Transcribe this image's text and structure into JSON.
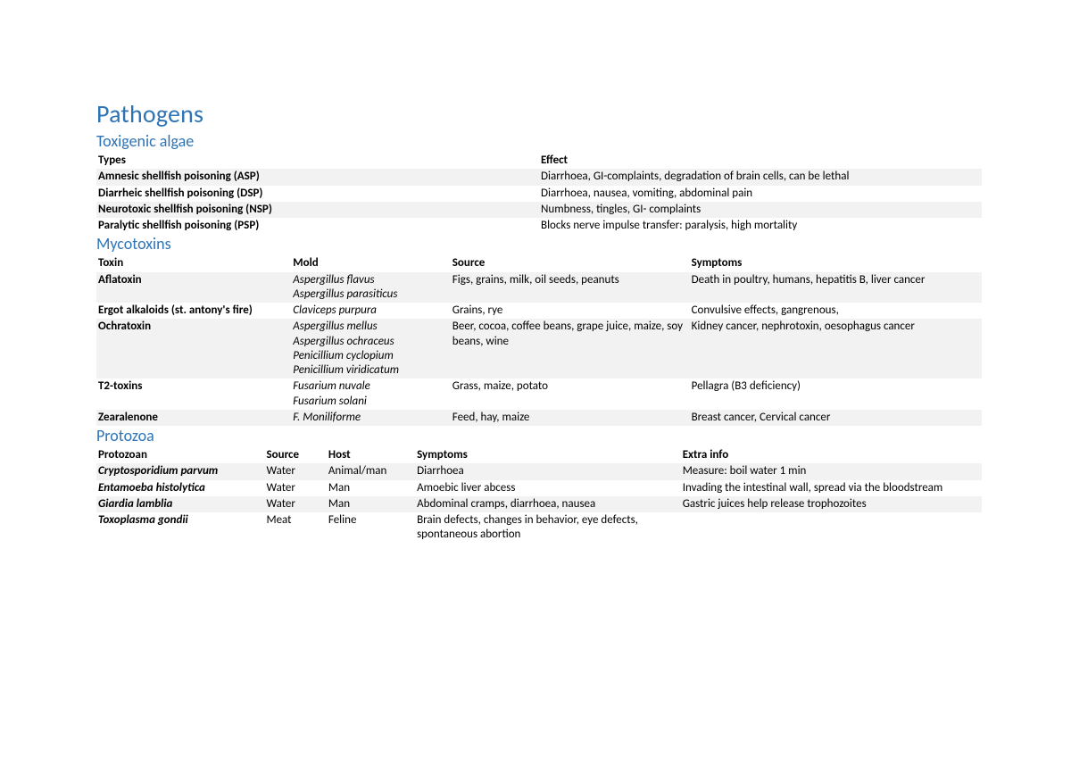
{
  "title": "Pathogens",
  "colors": {
    "heading": "#2e74b5",
    "text": "#000000",
    "row_shade": "#f2f2f2",
    "background": "#ffffff"
  },
  "typography": {
    "title_fontsize_pt": 21,
    "section_fontsize_pt": 14,
    "body_fontsize_pt": 10,
    "font_family": "Calibri"
  },
  "sections": {
    "algae": {
      "heading": "Toxigenic algae",
      "columns": [
        "Types",
        "Effect"
      ],
      "col_widths_pct": [
        50,
        50
      ],
      "rows": [
        {
          "type": "Amnesic shellfish poisoning (ASP)",
          "effect": "Diarrhoea, GI-complaints, degradation of brain cells, can be lethal"
        },
        {
          "type": "Diarrheic shellfish poisoning (DSP)",
          "effect": "Diarrhoea, nausea, vomiting, abdominal pain"
        },
        {
          "type": "Neurotoxic shellfish poisoning (NSP)",
          "effect": "Numbness, tingles, GI- complaints"
        },
        {
          "type": "Paralytic shellfish poisoning (PSP)",
          "effect": "Blocks nerve impulse transfer: paralysis, high mortality"
        }
      ]
    },
    "mycotoxins": {
      "heading": "Mycotoxins",
      "columns": [
        "Toxin",
        "Mold",
        "Source",
        "Symptoms"
      ],
      "col_widths_pct": [
        22,
        18,
        27,
        33
      ],
      "rows": [
        {
          "toxin": "Aflatoxin",
          "mold": "Aspergillus flavus\nAspergillus parasiticus",
          "source": "Figs, grains, milk, oil seeds, peanuts",
          "symptoms": "Death in poultry, humans, hepatitis B, liver cancer"
        },
        {
          "toxin": "Ergot alkaloids (st. antony's fire)",
          "mold": "Claviceps purpura",
          "source": "Grains, rye",
          "symptoms": "Convulsive effects, gangrenous,"
        },
        {
          "toxin": "Ochratoxin",
          "mold": "Aspergillus mellus\nAspergillus ochraceus\nPenicillium cyclopium\nPenicillium viridicatum",
          "source": "Beer, cocoa, coffee beans, grape juice, maize, soy beans, wine",
          "symptoms": "Kidney cancer, nephrotoxin, oesophagus cancer"
        },
        {
          "toxin": "T2-toxins",
          "mold": "Fusarium nuvale\nFusarium solani",
          "source": "Grass, maize, potato",
          "symptoms": "Pellagra (B3 deficiency)"
        },
        {
          "toxin": "Zearalenone",
          "mold": "F. Moniliforme",
          "source": "Feed, hay, maize",
          "symptoms": "Breast cancer, Cervical cancer"
        }
      ]
    },
    "protozoa": {
      "heading": "Protozoa",
      "columns": [
        "Protozoan",
        "Source",
        "Host",
        "Symptoms",
        "Extra info"
      ],
      "col_widths_pct": [
        19,
        7,
        10,
        30,
        34
      ],
      "rows": [
        {
          "protozoan": "Cryptosporidium parvum",
          "source": "Water",
          "host": "Animal/man",
          "symptoms": "Diarrhoea",
          "extra": "Measure: boil water 1 min"
        },
        {
          "protozoan": "Entamoeba histolytica",
          "source": "Water",
          "host": "Man",
          "symptoms": "Amoebic liver abcess",
          "extra": "Invading the intestinal wall, spread via the bloodstream"
        },
        {
          "protozoan": "Giardia lamblia",
          "source": "Water",
          "host": "Man",
          "symptoms": "Abdominal cramps, diarrhoea, nausea",
          "extra": "Gastric juices help release trophozoites"
        },
        {
          "protozoan": "Toxoplasma gondii",
          "source": "Meat",
          "host": "Feline",
          "symptoms": "Brain defects, changes in behavior, eye defects, spontaneous abortion",
          "extra": ""
        }
      ]
    }
  }
}
